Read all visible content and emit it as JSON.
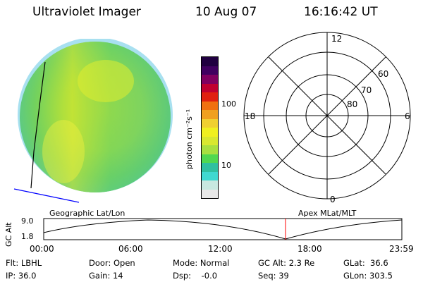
{
  "header": {
    "instrument": "Ultraviolet Imager",
    "date": "10 Aug 07",
    "time": "16:16:42 UT"
  },
  "colorbar": {
    "unit_label": "photon cm⁻²s⁻¹",
    "ticks": [
      "100",
      "10"
    ],
    "colors": [
      "#e8e8e8",
      "#c8e8e0",
      "#40d8d0",
      "#30c0a0",
      "#50d850",
      "#a8e040",
      "#d8e830",
      "#f0f020",
      "#f0d030",
      "#f0a020",
      "#f07010",
      "#e02010",
      "#c00030",
      "#800060",
      "#400060",
      "#200040"
    ]
  },
  "polar": {
    "mlt_labels": {
      "top": "12",
      "left": "18",
      "right": "6",
      "bottom": "0"
    },
    "lat_labels": [
      "60",
      "70",
      "80"
    ]
  },
  "timeline": {
    "left_title": "Geographic Lat/Lon",
    "right_title": "Apex MLat/MLT",
    "y_title": "GC Alt",
    "y_ticks": [
      "9.0",
      "1.8"
    ],
    "x_ticks": [
      "00:00",
      "06:00",
      "12:00",
      "18:00",
      "23:59"
    ],
    "marker_color": "#ff0000"
  },
  "info": {
    "flt": "Flt: LBHL",
    "ip": "IP: 36.0",
    "door": "Door: Open",
    "gain": "Gain: 14",
    "mode": "Mode: Normal",
    "dsp": "Dsp:    -0.0",
    "gc_alt": "GC Alt: 2.3 Re",
    "seq": "Seq: 39",
    "glat": "GLat:  36.6",
    "glon": "GLon: 303.5"
  }
}
